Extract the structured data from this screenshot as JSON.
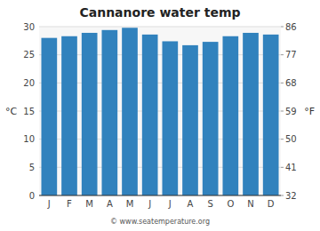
{
  "chart_data": {
    "type": "bar",
    "title": "Cannanore water temp",
    "categories": [
      "J",
      "F",
      "M",
      "A",
      "M",
      "J",
      "J",
      "A",
      "S",
      "O",
      "N",
      "D"
    ],
    "values": [
      28.0,
      28.3,
      28.9,
      29.4,
      29.8,
      28.6,
      27.4,
      26.7,
      27.3,
      28.3,
      28.9,
      28.6
    ],
    "color": "#3182bd",
    "ylim": [
      0,
      30
    ],
    "yticks": [
      0,
      5,
      10,
      15,
      20,
      25,
      30
    ],
    "ylabel": "°C",
    "y2lim": [
      32,
      86
    ],
    "y2ticks": [
      32,
      41,
      50,
      59,
      68,
      77,
      86
    ],
    "y2label": "°F",
    "annotation": "© www.seatemperature.org",
    "grid": true
  }
}
